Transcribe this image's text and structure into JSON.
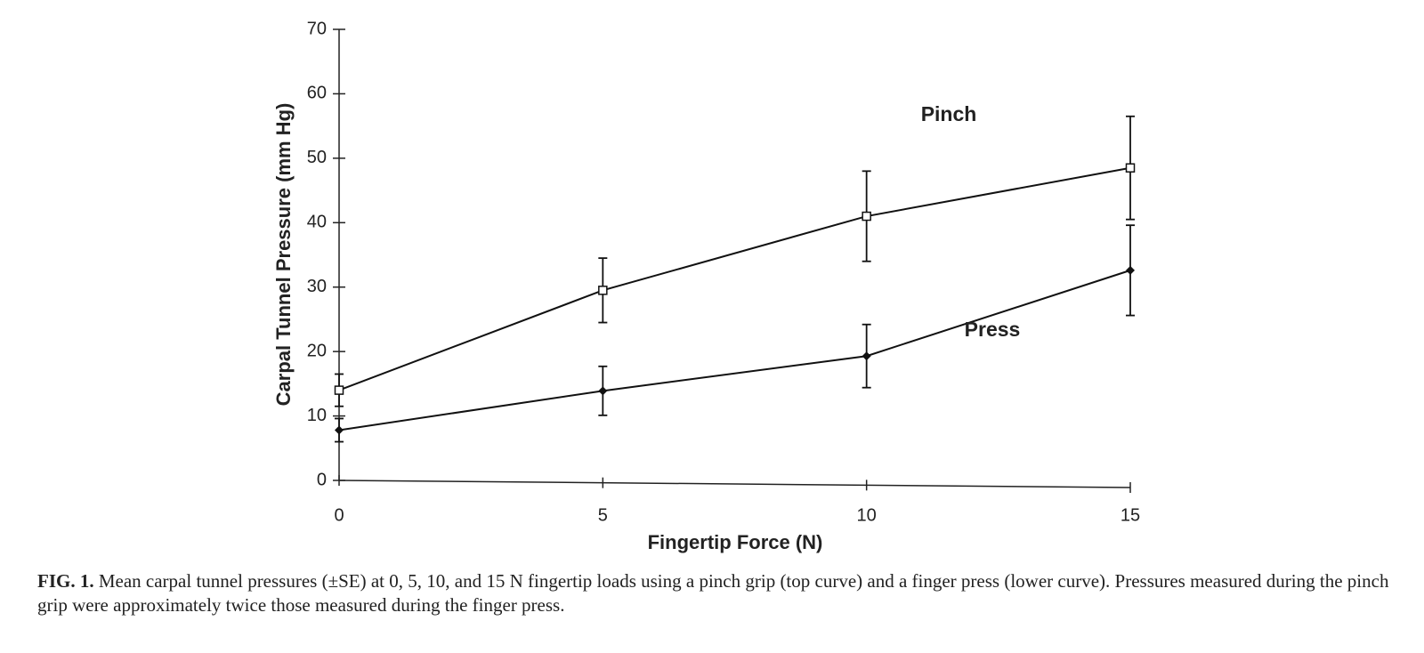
{
  "chart_data": {
    "type": "line",
    "xlabel": "Fingertip Force (N)",
    "ylabel": "Carpal Tunnel Pressure (mm Hg)",
    "x": [
      0,
      5,
      10,
      15
    ],
    "xlim": [
      0,
      15
    ],
    "xticks": [
      0,
      5,
      10,
      15
    ],
    "ylim": [
      0,
      70
    ],
    "yticks": [
      0,
      10,
      20,
      30,
      40,
      50,
      60,
      70
    ],
    "series": [
      {
        "name": "Pinch",
        "color": "#111111",
        "marker": "open-square",
        "values": [
          14,
          29.5,
          41,
          48.5
        ],
        "errors": [
          2.5,
          5,
          7,
          8
        ]
      },
      {
        "name": "Press",
        "color": "#111111",
        "marker": "filled-diamond",
        "values": [
          7.8,
          13.9,
          19.3,
          32.6
        ],
        "errors": [
          1.8,
          3.8,
          4.9,
          7
        ]
      }
    ]
  },
  "caption": {
    "label": "FIG. 1.",
    "text": "Mean carpal tunnel pressures (±SE) at 0, 5, 10, and 15 N fingertip loads using a pinch grip (top curve) and a finger press (lower curve). Pressures measured during the pinch grip were approximately twice those measured during the finger press."
  }
}
